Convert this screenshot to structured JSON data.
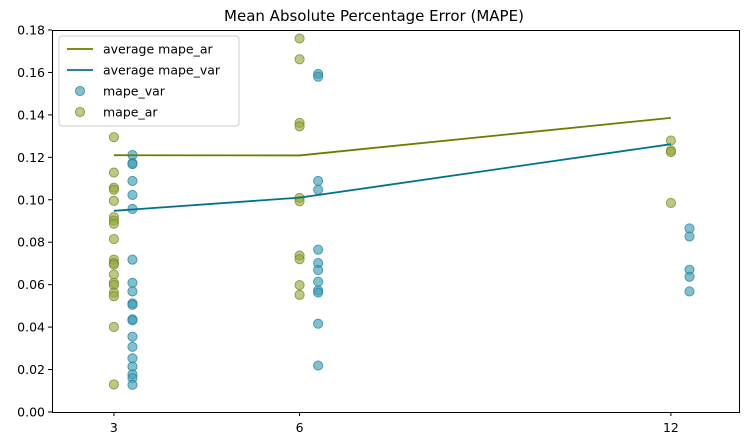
{
  "chart_data": {
    "type": "scatter",
    "title": "Mean Absolute Percentage Error (MAPE)",
    "xlabel": "",
    "ylabel": "",
    "xlim": [
      2,
      13.1
    ],
    "ylim": [
      0,
      0.18
    ],
    "x_ticks": [
      3,
      6,
      12
    ],
    "x_tick_labels": [
      "3",
      "6",
      "12"
    ],
    "y_ticks": [
      0.0,
      0.02,
      0.04,
      0.06,
      0.08,
      0.1,
      0.12,
      0.14,
      0.16,
      0.18
    ],
    "y_tick_labels": [
      "0.00",
      "0.02",
      "0.04",
      "0.06",
      "0.08",
      "0.10",
      "0.12",
      "0.14",
      "0.16",
      "0.18"
    ],
    "grid": false,
    "legend_placement": "top-left",
    "lines": [
      {
        "name": "average mape_ar",
        "color": "#6b7d00",
        "x": [
          3,
          6,
          12
        ],
        "y": [
          0.121,
          0.1209,
          0.1386
        ]
      },
      {
        "name": "average mape_var",
        "color": "#00738c",
        "x": [
          3,
          6,
          12
        ],
        "y": [
          0.0948,
          0.101,
          0.1262
        ]
      }
    ],
    "scatter_series": [
      {
        "name": "mape_var",
        "color": "#3f9db5",
        "edge_color": "#1d7f99",
        "points": [
          [
            3.3,
            0.1211
          ],
          [
            3.3,
            0.1173
          ],
          [
            3.3,
            0.1168
          ],
          [
            3.3,
            0.1089
          ],
          [
            3.3,
            0.1023
          ],
          [
            3.3,
            0.0957
          ],
          [
            3.3,
            0.0718
          ],
          [
            3.3,
            0.0609
          ],
          [
            3.3,
            0.0568
          ],
          [
            3.3,
            0.0512
          ],
          [
            3.3,
            0.0505
          ],
          [
            3.3,
            0.0437
          ],
          [
            3.3,
            0.0432
          ],
          [
            3.3,
            0.0355
          ],
          [
            3.3,
            0.0307
          ],
          [
            3.3,
            0.0253
          ],
          [
            3.3,
            0.0214
          ],
          [
            3.3,
            0.0177
          ],
          [
            3.3,
            0.016
          ],
          [
            3.3,
            0.0128
          ],
          [
            6.3,
            0.1593
          ],
          [
            6.3,
            0.158
          ],
          [
            6.3,
            0.1089
          ],
          [
            6.3,
            0.1047
          ],
          [
            6.3,
            0.0765
          ],
          [
            6.3,
            0.0702
          ],
          [
            6.3,
            0.0669
          ],
          [
            6.3,
            0.0614
          ],
          [
            6.3,
            0.0573
          ],
          [
            6.3,
            0.0563
          ],
          [
            6.3,
            0.0416
          ],
          [
            6.3,
            0.0219
          ],
          [
            12.3,
            0.0865
          ],
          [
            12.3,
            0.0827
          ],
          [
            12.3,
            0.067
          ],
          [
            12.3,
            0.0637
          ],
          [
            12.3,
            0.0568
          ]
        ]
      },
      {
        "name": "mape_ar",
        "color": "#9aab3c",
        "edge_color": "#6f8020",
        "points": [
          [
            3,
            0.1295
          ],
          [
            3,
            0.1128
          ],
          [
            3,
            0.1057
          ],
          [
            3,
            0.1047
          ],
          [
            3,
            0.0995
          ],
          [
            3,
            0.0918
          ],
          [
            3,
            0.0902
          ],
          [
            3,
            0.0887
          ],
          [
            3,
            0.0815
          ],
          [
            3,
            0.0718
          ],
          [
            3,
            0.0702
          ],
          [
            3,
            0.0695
          ],
          [
            3,
            0.0648
          ],
          [
            3,
            0.0609
          ],
          [
            3,
            0.0598
          ],
          [
            3,
            0.0562
          ],
          [
            3,
            0.0546
          ],
          [
            3,
            0.0401
          ],
          [
            3,
            0.013
          ],
          [
            6,
            0.176
          ],
          [
            6,
            0.1662
          ],
          [
            6,
            0.1362
          ],
          [
            6,
            0.1346
          ],
          [
            6,
            0.1009
          ],
          [
            6,
            0.0993
          ],
          [
            6,
            0.0737
          ],
          [
            6,
            0.072
          ],
          [
            6,
            0.0598
          ],
          [
            6,
            0.0552
          ],
          [
            12,
            0.1279
          ],
          [
            12,
            0.1232
          ],
          [
            12,
            0.1225
          ],
          [
            12,
            0.0985
          ]
        ]
      }
    ],
    "legend": [
      {
        "label": "average mape_ar",
        "kind": "line",
        "color": "#6b7d00"
      },
      {
        "label": "average mape_var",
        "kind": "line",
        "color": "#00738c"
      },
      {
        "label": "mape_var",
        "kind": "marker",
        "color": "#3f9db5",
        "edge_color": "#1d7f99"
      },
      {
        "label": "mape_ar",
        "kind": "marker",
        "color": "#9aab3c",
        "edge_color": "#6f8020"
      }
    ]
  }
}
